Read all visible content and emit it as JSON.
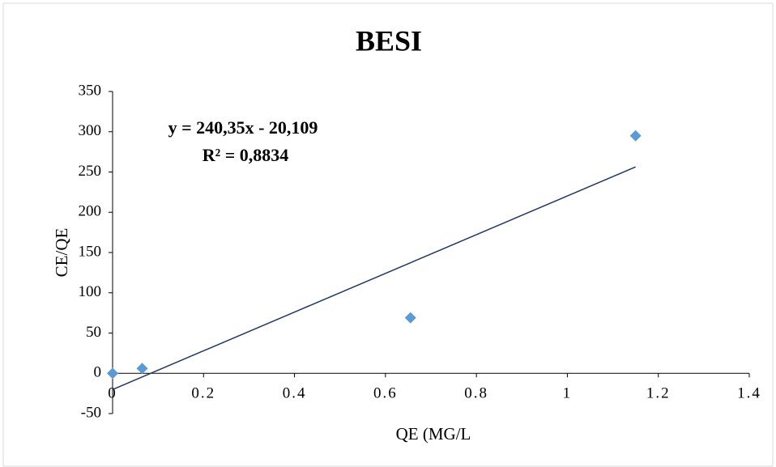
{
  "chart_data": {
    "type": "scatter",
    "title": "BESI",
    "x_label": "QE (MG/L",
    "y_label": "CE/QE",
    "annotations": [
      "y = 240,35x - 20,109",
      "R² = 0,8834"
    ],
    "series": [
      {
        "name": "CE/QE",
        "color": "#5b9bd5",
        "x": [
          0,
          0.065,
          0.655,
          1.15
        ],
        "values": [
          0,
          6,
          69,
          295
        ]
      }
    ],
    "trendline": {
      "color": "#203864",
      "x": [
        0,
        1.15
      ],
      "values": [
        -20.109,
        256.29
      ]
    },
    "xlim": [
      0,
      1.4
    ],
    "xticks": [
      0,
      0.2,
      0.4,
      0.6,
      0.8,
      1,
      1.2,
      1.4
    ],
    "ylim": [
      -50,
      350
    ],
    "yticks": [
      -50,
      0,
      50,
      100,
      150,
      200,
      250,
      300,
      350
    ]
  }
}
